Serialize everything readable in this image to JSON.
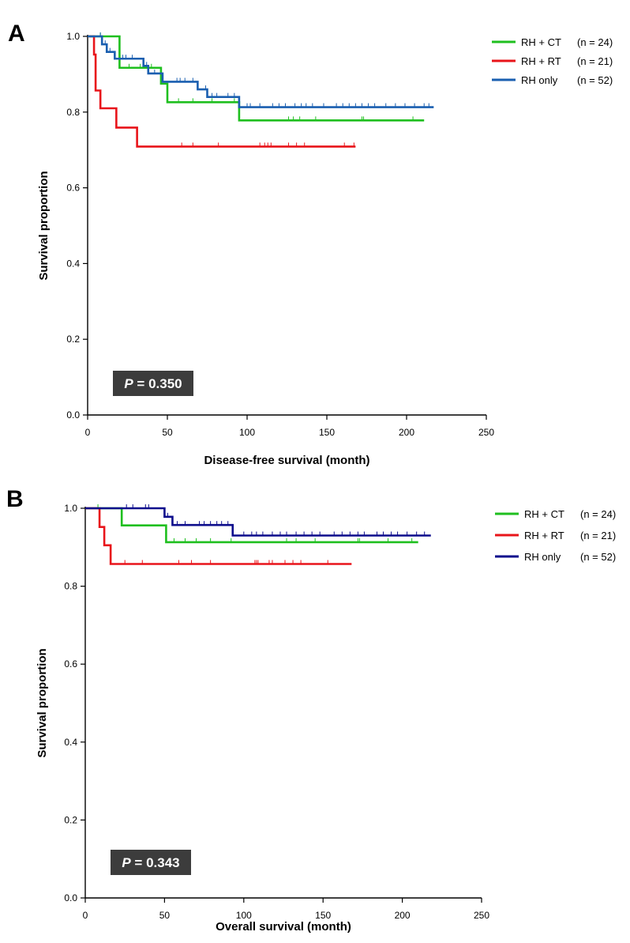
{
  "chart_data": [
    {
      "type": "line",
      "panel_label": "A",
      "xlabel": "Disease-free survival (month)",
      "ylabel": "Survival proportion",
      "xlim": [
        0,
        250
      ],
      "ylim": [
        0,
        1.0
      ],
      "xticks": [
        0,
        50,
        100,
        150,
        200,
        250
      ],
      "yticks": [
        0.0,
        0.2,
        0.4,
        0.6,
        0.8,
        1.0
      ],
      "ytick_labels": [
        "0.0",
        "0.2",
        "0.4",
        "0.6",
        "0.8",
        "1.0"
      ],
      "annotation": {
        "p_symbol": "P",
        "p_text": "= 0.350"
      },
      "legend_position": "top-right",
      "series": [
        {
          "name": "RH + CT",
          "n_label": "(n = 24)",
          "color": "#1fbf1f",
          "steps": [
            [
              0,
              1.0
            ],
            [
              20,
              0.917
            ],
            [
              46,
              0.875
            ],
            [
              50,
              0.826
            ],
            [
              95,
              0.778
            ],
            [
              211,
              0.778
            ]
          ],
          "censor_times": [
            8,
            26,
            33,
            40,
            57,
            66,
            78,
            92,
            126,
            129,
            133,
            143,
            172,
            173,
            204
          ]
        },
        {
          "name": "RH + RT",
          "n_label": "(n = 21)",
          "color": "#e8141a",
          "steps": [
            [
              0,
              1.0
            ],
            [
              4,
              0.952
            ],
            [
              5,
              0.857
            ],
            [
              8,
              0.81
            ],
            [
              18,
              0.759
            ],
            [
              31,
              0.709
            ],
            [
              168,
              0.709
            ]
          ],
          "censor_times": [
            59,
            66,
            82,
            108,
            111,
            113,
            115,
            126,
            131,
            136,
            161,
            167
          ]
        },
        {
          "name": "RH only",
          "n_label": "(n = 52)",
          "color": "#1a5fb0",
          "steps": [
            [
              0,
              1.0
            ],
            [
              9,
              0.979
            ],
            [
              12,
              0.959
            ],
            [
              17,
              0.941
            ],
            [
              35,
              0.922
            ],
            [
              38,
              0.902
            ],
            [
              47,
              0.88
            ],
            [
              69,
              0.86
            ],
            [
              75,
              0.84
            ],
            [
              95,
              0.813
            ],
            [
              217,
              0.813
            ]
          ],
          "censor_times": [
            8,
            11,
            14,
            22,
            24,
            28,
            37,
            42,
            56,
            58,
            61,
            66,
            74,
            78,
            81,
            88,
            92,
            100,
            102,
            108,
            116,
            120,
            124,
            130,
            134,
            137,
            141,
            148,
            156,
            160,
            164,
            168,
            172,
            176,
            180,
            187,
            193,
            199,
            205,
            211,
            214
          ]
        }
      ]
    },
    {
      "type": "line",
      "panel_label": "B",
      "xlabel": "Overall survival (month)",
      "ylabel": "Survival proportion",
      "xlim": [
        0,
        250
      ],
      "ylim": [
        0,
        1.0
      ],
      "xticks": [
        0,
        50,
        100,
        150,
        200,
        250
      ],
      "yticks": [
        0.0,
        0.2,
        0.4,
        0.6,
        0.8,
        1.0
      ],
      "ytick_labels": [
        "0.0",
        "0.2",
        "0.4",
        "0.6",
        "0.8",
        "1.0"
      ],
      "annotation": {
        "p_symbol": "P",
        "p_text": "= 0.343"
      },
      "legend_position": "top-right",
      "series": [
        {
          "name": "RH + CT",
          "n_label": "(n = 24)",
          "color": "#1fbf1f",
          "steps": [
            [
              0,
              1.0
            ],
            [
              23,
              0.956
            ],
            [
              51,
              0.913
            ],
            [
              210,
              0.913
            ]
          ],
          "censor_times": [
            8,
            56,
            63,
            70,
            79,
            92,
            127,
            133,
            145,
            172,
            173,
            191,
            206
          ]
        },
        {
          "name": "RH + RT",
          "n_label": "(n = 21)",
          "color": "#e8141a",
          "steps": [
            [
              0,
              1.0
            ],
            [
              9,
              0.952
            ],
            [
              12,
              0.905
            ],
            [
              16,
              0.857
            ],
            [
              168,
              0.857
            ]
          ],
          "censor_times": [
            25,
            36,
            59,
            67,
            79,
            107,
            108,
            109,
            116,
            118,
            126,
            131,
            136,
            153
          ]
        },
        {
          "name": "RH only",
          "n_label": "(n = 52)",
          "color": "#0d0d8c",
          "steps": [
            [
              0,
              1.0
            ],
            [
              50,
              0.978
            ],
            [
              55,
              0.957
            ],
            [
              93,
              0.93
            ],
            [
              218,
              0.93
            ]
          ],
          "censor_times": [
            26,
            30,
            38,
            40,
            52,
            58,
            63,
            72,
            75,
            79,
            83,
            86,
            90,
            100,
            105,
            108,
            112,
            118,
            123,
            127,
            133,
            138,
            143,
            148,
            157,
            162,
            167,
            172,
            176,
            184,
            188,
            193,
            197,
            203,
            209,
            214
          ]
        }
      ]
    }
  ]
}
